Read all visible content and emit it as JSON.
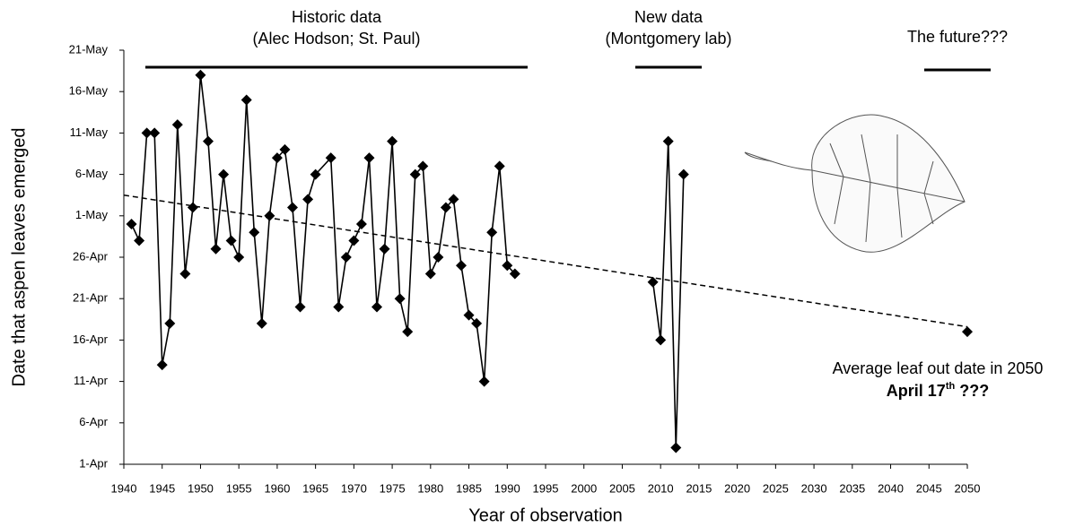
{
  "chart_data": {
    "type": "line",
    "x_label": "Year of observation",
    "y_label": "Date that aspen leaves emerged",
    "xlim": [
      1940,
      2050
    ],
    "xticks": [
      1940,
      1945,
      1950,
      1955,
      1960,
      1965,
      1970,
      1975,
      1980,
      1985,
      1990,
      1995,
      2000,
      2005,
      2010,
      2015,
      2020,
      2025,
      2030,
      2035,
      2040,
      2045,
      2050
    ],
    "ylim": [
      91,
      141
    ],
    "yticks": [
      {
        "value": 91,
        "label": "1-Apr"
      },
      {
        "value": 96,
        "label": "6-Apr"
      },
      {
        "value": 101,
        "label": "11-Apr"
      },
      {
        "value": 106,
        "label": "16-Apr"
      },
      {
        "value": 111,
        "label": "21-Apr"
      },
      {
        "value": 116,
        "label": "26-Apr"
      },
      {
        "value": 121,
        "label": "1-May"
      },
      {
        "value": 126,
        "label": "6-May"
      },
      {
        "value": 131,
        "label": "11-May"
      },
      {
        "value": 136,
        "label": "16-May"
      },
      {
        "value": 141,
        "label": "21-May"
      }
    ],
    "grid": false,
    "series": [
      {
        "color": "#000000",
        "x": [
          1941,
          1942,
          1943,
          1944,
          1945,
          1946,
          1947,
          1948,
          1949,
          1950,
          1951,
          1952,
          1953,
          1954,
          1955,
          1956,
          1957,
          1958,
          1959,
          1960,
          1961,
          1962,
          1963,
          1964,
          1965,
          1967,
          1968,
          1969,
          1970,
          1971,
          1972,
          1973,
          1974,
          1975,
          1976,
          1977,
          1978,
          1979,
          1980,
          1981,
          1982,
          1983,
          1984,
          1985,
          1986,
          1987,
          1988,
          1989,
          1990,
          1991
        ],
        "values": [
          120,
          118,
          131,
          131,
          103,
          108,
          132,
          114,
          122,
          138,
          130,
          117,
          126,
          118,
          116,
          135,
          119,
          108,
          121,
          128,
          129,
          122,
          110,
          123,
          126,
          128,
          110,
          116,
          118,
          120,
          128,
          110,
          117,
          130,
          111,
          107,
          126,
          127,
          114,
          116,
          122,
          123,
          115,
          109,
          108,
          101,
          119,
          127,
          115,
          114
        ]
      },
      {
        "color": "#000000",
        "x": [
          2009,
          2010,
          2011,
          2012,
          2013
        ],
        "values": [
          113,
          106,
          130,
          93,
          126
        ]
      },
      {
        "color": "#000000",
        "x": [
          2050
        ],
        "values": [
          107
        ]
      }
    ],
    "trendline": {
      "color": "#000000",
      "dashed": true,
      "x": [
        1940,
        2050
      ],
      "values": [
        123.5,
        107.6
      ]
    },
    "annotations": [
      {
        "lines": [
          "Historic data",
          "(Alec Hodson; St. Paul)"
        ]
      },
      {
        "lines": [
          "New data",
          "(Montgomery lab)"
        ]
      },
      {
        "lines": [
          "The future???"
        ]
      }
    ],
    "callout": {
      "text": "Average leaf out date in 2050",
      "emphasis": "April 17",
      "suffix": "th",
      "mark": " ???"
    }
  }
}
